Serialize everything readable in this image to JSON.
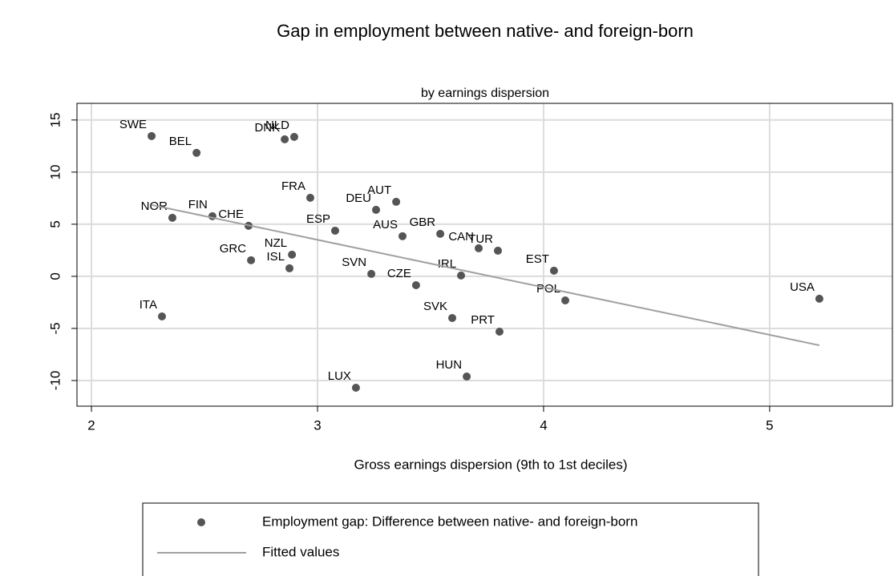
{
  "chart_data": {
    "type": "scatter",
    "title": "Gap in employment between native- and foreign-born",
    "subtitle": "by earnings dispersion",
    "xlabel": "Gross earnings dispersion (9th to 1st deciles)",
    "xlim": [
      1.936,
      5.543
    ],
    "xticks": [
      2,
      3,
      4,
      5
    ],
    "ylim": [
      -12.46,
      16.6
    ],
    "yticks": [
      -10,
      -5,
      0,
      5,
      10,
      15
    ],
    "grid": true,
    "legend": "bottom",
    "series": [
      {
        "name": "Employment gap: Difference between native- and foreign-born",
        "type": "scatter",
        "color": "#555555",
        "labels": [
          "SWE",
          "BEL",
          "DNK",
          "NLD",
          "FRA",
          "DEU",
          "AUT",
          "ESP",
          "AUS",
          "GBR",
          "CAN",
          "TUR",
          "NOR",
          "FIN",
          "CHE",
          "GRC",
          "NZL",
          "ISL",
          "SVN",
          "CZE",
          "IRL",
          "EST",
          "POL",
          "USA",
          "ITA",
          "SVK",
          "PRT",
          "HUN",
          "LUX"
        ],
        "x": [
          2.266,
          2.465,
          2.855,
          2.897,
          2.968,
          3.259,
          3.348,
          3.078,
          3.376,
          3.543,
          3.713,
          3.798,
          2.358,
          2.535,
          2.695,
          2.706,
          2.887,
          2.876,
          3.238,
          3.436,
          3.635,
          4.046,
          4.096,
          5.22,
          2.312,
          3.596,
          3.805,
          3.66,
          3.17
        ],
        "values": [
          13.46,
          11.85,
          13.15,
          13.38,
          7.54,
          6.38,
          7.15,
          4.38,
          3.85,
          4.08,
          2.69,
          2.46,
          5.62,
          5.77,
          4.85,
          1.54,
          2.08,
          0.77,
          0.23,
          -0.85,
          0.08,
          0.54,
          -2.31,
          -2.15,
          -3.85,
          -4.0,
          -5.31,
          -9.62,
          -10.69
        ]
      },
      {
        "name": "Fitted values",
        "type": "line",
        "color": "#a0a0a0",
        "x": [
          2.266,
          5.22
        ],
        "values": [
          6.85,
          -6.62
        ]
      }
    ]
  }
}
